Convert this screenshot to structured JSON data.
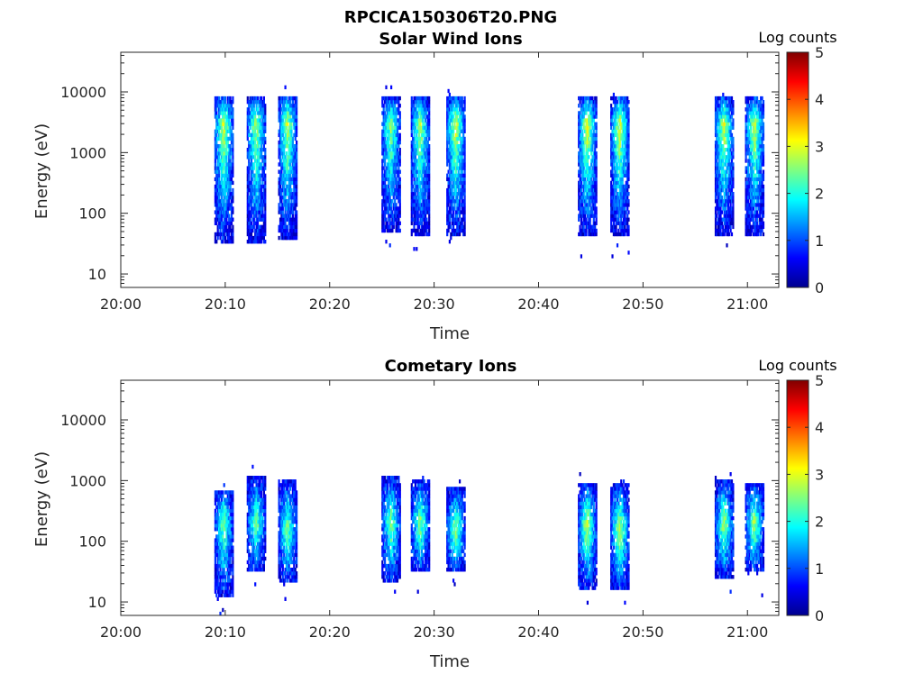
{
  "figure_title": "RPCICA150306T20.PNG",
  "colorbar": {
    "label": "Log counts",
    "ticks": [
      "0",
      "1",
      "2",
      "3",
      "4",
      "5"
    ],
    "range": [
      0,
      5
    ],
    "colormap": "jet"
  },
  "chart_data": [
    {
      "type": "heatmap",
      "title": "Solar Wind Ions",
      "xlabel": "Time",
      "ylabel": "Energy (eV)",
      "x_ticks": [
        "20:00",
        "20:10",
        "20:20",
        "20:30",
        "20:40",
        "20:50",
        "21:00"
      ],
      "y_ticks": [
        "10",
        "100",
        "1000",
        "10000"
      ],
      "y_scale": "log",
      "xlim": [
        "20:00",
        "21:03"
      ],
      "ylim": [
        6,
        45000
      ],
      "bursts": [
        {
          "time": "20:09.8",
          "e_low": 30,
          "e_high": 8000,
          "e_peak": 3000,
          "peak": 2.6
        },
        {
          "time": "20:12.9",
          "e_low": 30,
          "e_high": 8000,
          "e_peak": 3000,
          "peak": 2.4
        },
        {
          "time": "20:15.9",
          "e_low": 35,
          "e_high": 9000,
          "e_peak": 3000,
          "peak": 2.5
        },
        {
          "time": "20:25.8",
          "e_low": 50,
          "e_high": 8000,
          "e_peak": 3000,
          "peak": 2.3
        },
        {
          "time": "20:28.6",
          "e_low": 45,
          "e_high": 8000,
          "e_peak": 3000,
          "peak": 2.4
        },
        {
          "time": "20:32.0",
          "e_low": 40,
          "e_high": 8000,
          "e_peak": 3000,
          "peak": 2.6
        },
        {
          "time": "20:44.6",
          "e_low": 45,
          "e_high": 8000,
          "e_peak": 3000,
          "peak": 2.7
        },
        {
          "time": "20:47.7",
          "e_low": 40,
          "e_high": 8000,
          "e_peak": 3000,
          "peak": 2.6
        },
        {
          "time": "20:57.7",
          "e_low": 45,
          "e_high": 8000,
          "e_peak": 3000,
          "peak": 2.5
        },
        {
          "time": "21:00.6",
          "e_low": 45,
          "e_high": 8000,
          "e_peak": 3000,
          "peak": 2.5
        }
      ]
    },
    {
      "type": "heatmap",
      "title": "Cometary Ions",
      "xlabel": "Time",
      "ylabel": "Energy (eV)",
      "x_ticks": [
        "20:00",
        "20:10",
        "20:20",
        "20:30",
        "20:40",
        "20:50",
        "21:00"
      ],
      "y_ticks": [
        "10",
        "100",
        "1000",
        "10000"
      ],
      "y_scale": "log",
      "xlim": [
        "20:00",
        "21:03"
      ],
      "ylim": [
        6,
        45000
      ],
      "bursts": [
        {
          "time": "20:09.8",
          "e_low": 12,
          "e_high": 700,
          "e_peak": 200,
          "peak": 2.2
        },
        {
          "time": "20:12.9",
          "e_low": 30,
          "e_high": 1200,
          "e_peak": 200,
          "peak": 2.1
        },
        {
          "time": "20:15.9",
          "e_low": 20,
          "e_high": 1000,
          "e_peak": 150,
          "peak": 2.2
        },
        {
          "time": "20:25.8",
          "e_low": 20,
          "e_high": 1200,
          "e_peak": 200,
          "peak": 2.2
        },
        {
          "time": "20:28.6",
          "e_low": 30,
          "e_high": 1000,
          "e_peak": 200,
          "peak": 2.3
        },
        {
          "time": "20:32.0",
          "e_low": 30,
          "e_high": 800,
          "e_peak": 150,
          "peak": 2.3
        },
        {
          "time": "20:44.6",
          "e_low": 15,
          "e_high": 900,
          "e_peak": 200,
          "peak": 2.5
        },
        {
          "time": "20:47.7",
          "e_low": 15,
          "e_high": 900,
          "e_peak": 150,
          "peak": 2.5
        },
        {
          "time": "20:57.7",
          "e_low": 25,
          "e_high": 1000,
          "e_peak": 200,
          "peak": 2.4
        },
        {
          "time": "21:00.6",
          "e_low": 30,
          "e_high": 900,
          "e_peak": 200,
          "peak": 2.4
        }
      ]
    }
  ]
}
